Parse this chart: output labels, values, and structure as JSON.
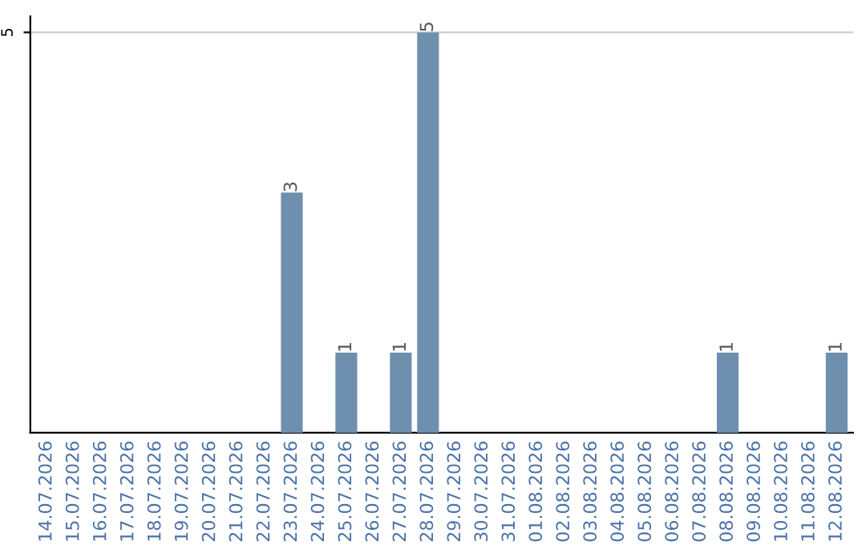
{
  "chart_data": {
    "type": "bar",
    "categories": [
      "14.07.2026",
      "15.07.2026",
      "16.07.2026",
      "17.07.2026",
      "18.07.2026",
      "19.07.2026",
      "20.07.2026",
      "21.07.2026",
      "22.07.2026",
      "23.07.2026",
      "24.07.2026",
      "25.07.2026",
      "26.07.2026",
      "27.07.2026",
      "28.07.2026",
      "29.07.2026",
      "30.07.2026",
      "31.07.2026",
      "01.08.2026",
      "02.08.2026",
      "03.08.2026",
      "04.08.2026",
      "05.08.2026",
      "06.08.2026",
      "07.08.2026",
      "08.08.2026",
      "09.08.2026",
      "10.08.2026",
      "11.08.2026",
      "12.08.2026"
    ],
    "values": [
      0,
      0,
      0,
      0,
      0,
      0,
      0,
      0,
      0,
      3,
      0,
      1,
      0,
      1,
      5,
      0,
      0,
      0,
      0,
      0,
      0,
      0,
      0,
      0,
      0,
      1,
      0,
      0,
      0,
      1
    ],
    "value_labels": [
      null,
      null,
      null,
      null,
      null,
      null,
      null,
      null,
      null,
      "3",
      null,
      "1",
      null,
      "1",
      "5",
      null,
      null,
      null,
      null,
      null,
      null,
      null,
      null,
      null,
      null,
      "1",
      null,
      null,
      null,
      "1"
    ],
    "color": "#6f8fae",
    "ylim": [
      0,
      5.2
    ],
    "yticks": [
      5
    ],
    "grid": "y"
  }
}
